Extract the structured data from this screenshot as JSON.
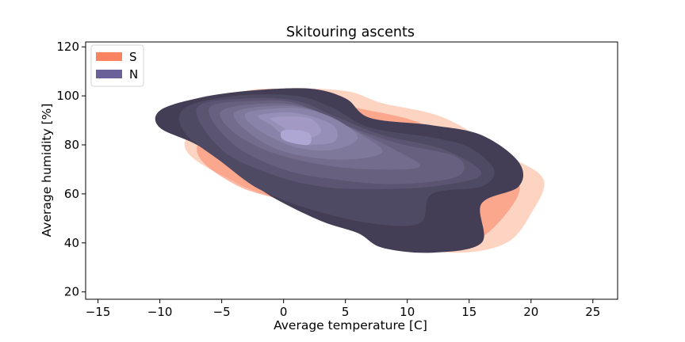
{
  "chart_data": {
    "type": "density-contour",
    "title": "Skitouring ascents",
    "xlabel": "Average temperature [C]",
    "ylabel": "Average humidity [%]",
    "xlim": [
      -16,
      27
    ],
    "ylim": [
      17,
      122
    ],
    "xticks": [
      -15,
      -10,
      -5,
      0,
      5,
      10,
      15,
      20,
      25
    ],
    "yticks": [
      20,
      40,
      60,
      80,
      100,
      120
    ],
    "legend_position": "upper-left",
    "grid": false,
    "series": [
      {
        "name": "S",
        "legend_color": "#FA8462",
        "outer_color": "#FDD3C1",
        "levels": [
          [
            [
              -4,
              100
            ],
            [
              0,
              103
            ],
            [
              5,
              102
            ],
            [
              8,
              97
            ],
            [
              13,
              91
            ],
            [
              18,
              76
            ],
            [
              21,
              66
            ],
            [
              20,
              52
            ],
            [
              18,
              40
            ],
            [
              14,
              36
            ],
            [
              9,
              40
            ],
            [
              5,
              48
            ],
            [
              0,
              57
            ],
            [
              -4,
              65
            ],
            [
              -8,
              80
            ]
          ],
          [
            [
              -3,
              98
            ],
            [
              2,
              99
            ],
            [
              6,
              95
            ],
            [
              11,
              89
            ],
            [
              16,
              76
            ],
            [
              19,
              65
            ],
            [
              18,
              52
            ],
            [
              15,
              40
            ],
            [
              10,
              41
            ],
            [
              6,
              48
            ],
            [
              1,
              56
            ],
            [
              -4,
              64
            ],
            [
              -7,
              79
            ]
          ]
        ]
      },
      {
        "name": "N",
        "legend_color": "#6A6199",
        "base_color": "#433E55",
        "inner_color": "#AEA6D3",
        "levels": [
          [
            [
              -10,
              94
            ],
            [
              -7,
              99
            ],
            [
              -3,
              102
            ],
            [
              2,
              103
            ],
            [
              5,
              99
            ],
            [
              7,
              91
            ],
            [
              12,
              88
            ],
            [
              16,
              84
            ],
            [
              19,
              73
            ],
            [
              19,
              63
            ],
            [
              16,
              56
            ],
            [
              16,
              40
            ],
            [
              12,
              36
            ],
            [
              8,
              38
            ],
            [
              6,
              44
            ],
            [
              3,
              49
            ],
            [
              -1,
              59
            ],
            [
              -4,
              70
            ],
            [
              -7,
              80
            ],
            [
              -10,
              87
            ]
          ],
          [
            [
              -8,
              95
            ],
            [
              -4,
              100
            ],
            [
              1,
              100
            ],
            [
              4,
              95
            ],
            [
              7,
              87
            ],
            [
              12,
              83
            ],
            [
              15,
              79
            ],
            [
              17,
              70
            ],
            [
              16,
              63
            ],
            [
              12,
              60
            ],
            [
              11,
              48
            ],
            [
              7,
              48
            ],
            [
              2,
              54
            ],
            [
              -2,
              62
            ],
            [
              -5,
              73
            ],
            [
              -8,
              85
            ]
          ],
          [
            [
              -7,
              95
            ],
            [
              -3,
              99
            ],
            [
              1,
              98
            ],
            [
              4,
              92
            ],
            [
              8,
              84
            ],
            [
              13,
              78
            ],
            [
              16,
              68
            ],
            [
              12,
              63
            ],
            [
              7,
              62
            ],
            [
              3,
              63
            ],
            [
              -1,
              68
            ],
            [
              -5,
              78
            ]
          ],
          [
            [
              -6,
              95
            ],
            [
              -2,
              98
            ],
            [
              1,
              97
            ],
            [
              4,
              90
            ],
            [
              9,
              81
            ],
            [
              14,
              75
            ],
            [
              14,
              67
            ],
            [
              9,
              64
            ],
            [
              4,
              66
            ],
            [
              0,
              70
            ],
            [
              -4,
              80
            ]
          ],
          [
            [
              -5,
              94
            ],
            [
              -1,
              97
            ],
            [
              2,
              95
            ],
            [
              5,
              88
            ],
            [
              9,
              78
            ],
            [
              11,
              71
            ],
            [
              7,
              70
            ],
            [
              3,
              72
            ],
            [
              -1,
              77
            ],
            [
              -4,
              85
            ]
          ],
          [
            [
              -4,
              93
            ],
            [
              0,
              96
            ],
            [
              3,
              93
            ],
            [
              6,
              85
            ],
            [
              8,
              77
            ],
            [
              5,
              74
            ],
            [
              1,
              76
            ],
            [
              -2,
              82
            ]
          ],
          [
            [
              -3,
              93
            ],
            [
              1,
              95
            ],
            [
              4,
              91
            ],
            [
              6,
              83
            ],
            [
              4,
              78
            ],
            [
              1,
              79
            ],
            [
              -2,
              86
            ]
          ],
          [
            [
              -2,
              92
            ],
            [
              1,
              93
            ],
            [
              4,
              88
            ],
            [
              4,
              81
            ],
            [
              1,
              81
            ],
            [
              -1,
              88
            ]
          ],
          [
            [
              -1,
              91
            ],
            [
              2,
              91
            ],
            [
              3,
              85
            ],
            [
              1,
              82
            ],
            [
              0,
              87
            ]
          ],
          [
            [
              0,
              86
            ],
            [
              2,
              85
            ],
            [
              2,
              80
            ],
            [
              0,
              82
            ]
          ]
        ]
      }
    ]
  }
}
